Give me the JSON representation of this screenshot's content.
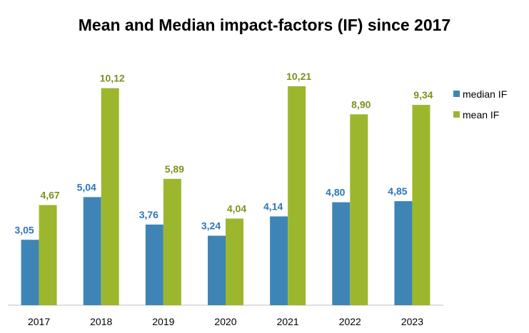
{
  "chart_data": {
    "type": "bar",
    "title": "Mean and Median impact-factors (IF) since 2017",
    "categories": [
      "2017",
      "2018",
      "2019",
      "2020",
      "2021",
      "2022",
      "2023"
    ],
    "series": [
      {
        "name": "median IF",
        "color": "#3E85B6",
        "values": [
          3.05,
          5.04,
          3.76,
          3.24,
          4.14,
          4.8,
          4.85
        ],
        "labels": [
          "3,05",
          "5,04",
          "3,76",
          "3,24",
          "4,14",
          "4,80",
          "4,85"
        ]
      },
      {
        "name": "mean IF",
        "color": "#9CB72D",
        "values": [
          4.67,
          10.12,
          5.89,
          4.04,
          10.21,
          8.9,
          9.34
        ],
        "labels": [
          "4,67",
          "10,12",
          "5,89",
          "4,04",
          "10,21",
          "8,90",
          "9,34"
        ]
      }
    ],
    "ylim": [
      0,
      12.9
    ],
    "grid": false,
    "legend": "right",
    "label_colors": {
      "median IF": "#2E75B6",
      "mean IF": "#7F8F1F"
    }
  }
}
